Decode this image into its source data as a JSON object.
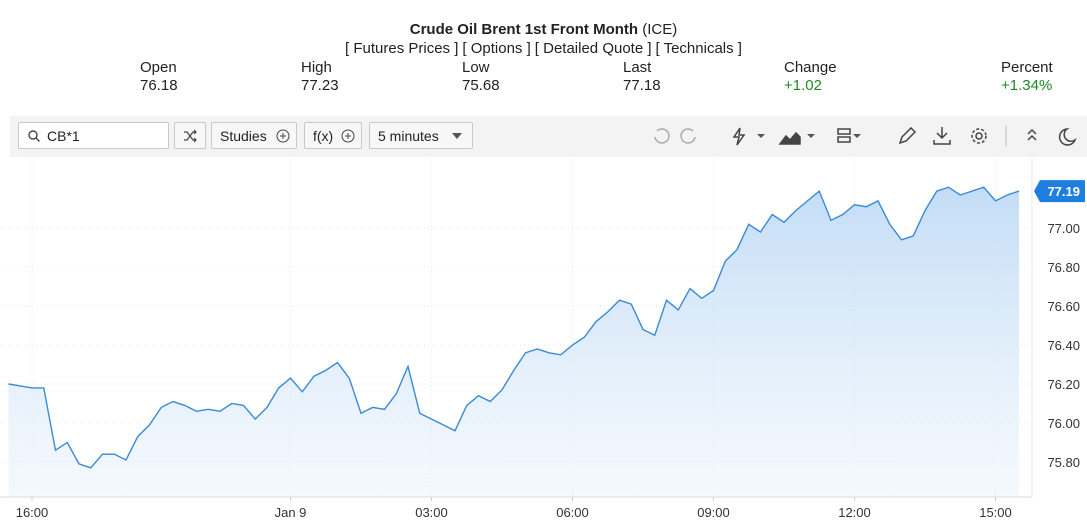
{
  "header": {
    "title": "Crude Oil Brent 1st Front Month",
    "exchange": "(ICE)",
    "links": [
      "[ Futures Prices ]",
      "[ Options ]",
      "[ Detailed Quote ]",
      "[ Technicals ]"
    ]
  },
  "quote": [
    {
      "label": "Open",
      "value": "76.18"
    },
    {
      "label": "High",
      "value": "77.23"
    },
    {
      "label": "Low",
      "value": "75.68"
    },
    {
      "label": "Last",
      "value": "77.18"
    },
    {
      "label": "Change",
      "value": "+1.02"
    },
    {
      "label": "Percent",
      "value": "+1.34%"
    }
  ],
  "toolbar": {
    "symbol": "CB*1",
    "studies": "Studies",
    "fx": "f(x)",
    "interval": "5 minutes"
  },
  "chart_data": {
    "type": "area",
    "color": "#3a8ad6",
    "categories": [
      null,
      null,
      "16:00",
      null,
      null,
      null,
      null,
      null,
      null,
      null,
      null,
      null,
      null,
      null,
      null,
      null,
      null,
      null,
      null,
      null,
      null,
      null,
      null,
      null,
      "Jan 9",
      null,
      null,
      null,
      null,
      null,
      null,
      null,
      null,
      null,
      null,
      null,
      "03:00",
      null,
      null,
      null,
      null,
      null,
      null,
      null,
      null,
      null,
      null,
      null,
      "06:00",
      null,
      null,
      null,
      null,
      null,
      null,
      null,
      null,
      null,
      null,
      null,
      "09:00",
      null,
      null,
      null,
      null,
      null,
      null,
      null,
      null,
      null,
      null,
      null,
      "12:00",
      null,
      null,
      null,
      null,
      null,
      null,
      null,
      null,
      null,
      null,
      null,
      "15:00",
      null,
      null
    ],
    "values": [
      76.2,
      76.19,
      76.18,
      76.18,
      75.86,
      75.9,
      75.79,
      75.77,
      75.84,
      75.84,
      75.81,
      75.93,
      75.99,
      76.08,
      76.11,
      76.09,
      76.06,
      76.07,
      76.06,
      76.1,
      76.09,
      76.02,
      76.08,
      76.18,
      76.23,
      76.16,
      76.24,
      76.27,
      76.31,
      76.23,
      76.05,
      76.08,
      76.07,
      76.15,
      76.29,
      76.05,
      76.02,
      75.99,
      75.96,
      76.09,
      76.14,
      76.11,
      76.17,
      76.27,
      76.36,
      76.38,
      76.36,
      76.35,
      76.4,
      76.44,
      76.52,
      76.57,
      76.63,
      76.61,
      76.48,
      76.45,
      76.63,
      76.58,
      76.69,
      76.64,
      76.68,
      76.83,
      76.89,
      77.02,
      76.98,
      77.07,
      77.03,
      77.09,
      77.14,
      77.19,
      77.04,
      77.07,
      77.12,
      77.11,
      77.14,
      77.02,
      76.94,
      76.96,
      77.09,
      77.19,
      77.21,
      77.17,
      77.19,
      77.21,
      77.14,
      77.17,
      77.19
    ],
    "ylim": [
      75.62,
      77.36
    ],
    "yticks": [
      {
        "value": 75.8,
        "label": "75.80"
      },
      {
        "value": 76.0,
        "label": "76.00"
      },
      {
        "value": 76.2,
        "label": "76.20"
      },
      {
        "value": 76.4,
        "label": "76.40"
      },
      {
        "value": 76.6,
        "label": "76.60"
      },
      {
        "value": 76.8,
        "label": "76.80"
      },
      {
        "value": 77.0,
        "label": "77.00"
      }
    ],
    "last_price": {
      "value": 77.19,
      "label": "77.19"
    },
    "grid": true
  }
}
